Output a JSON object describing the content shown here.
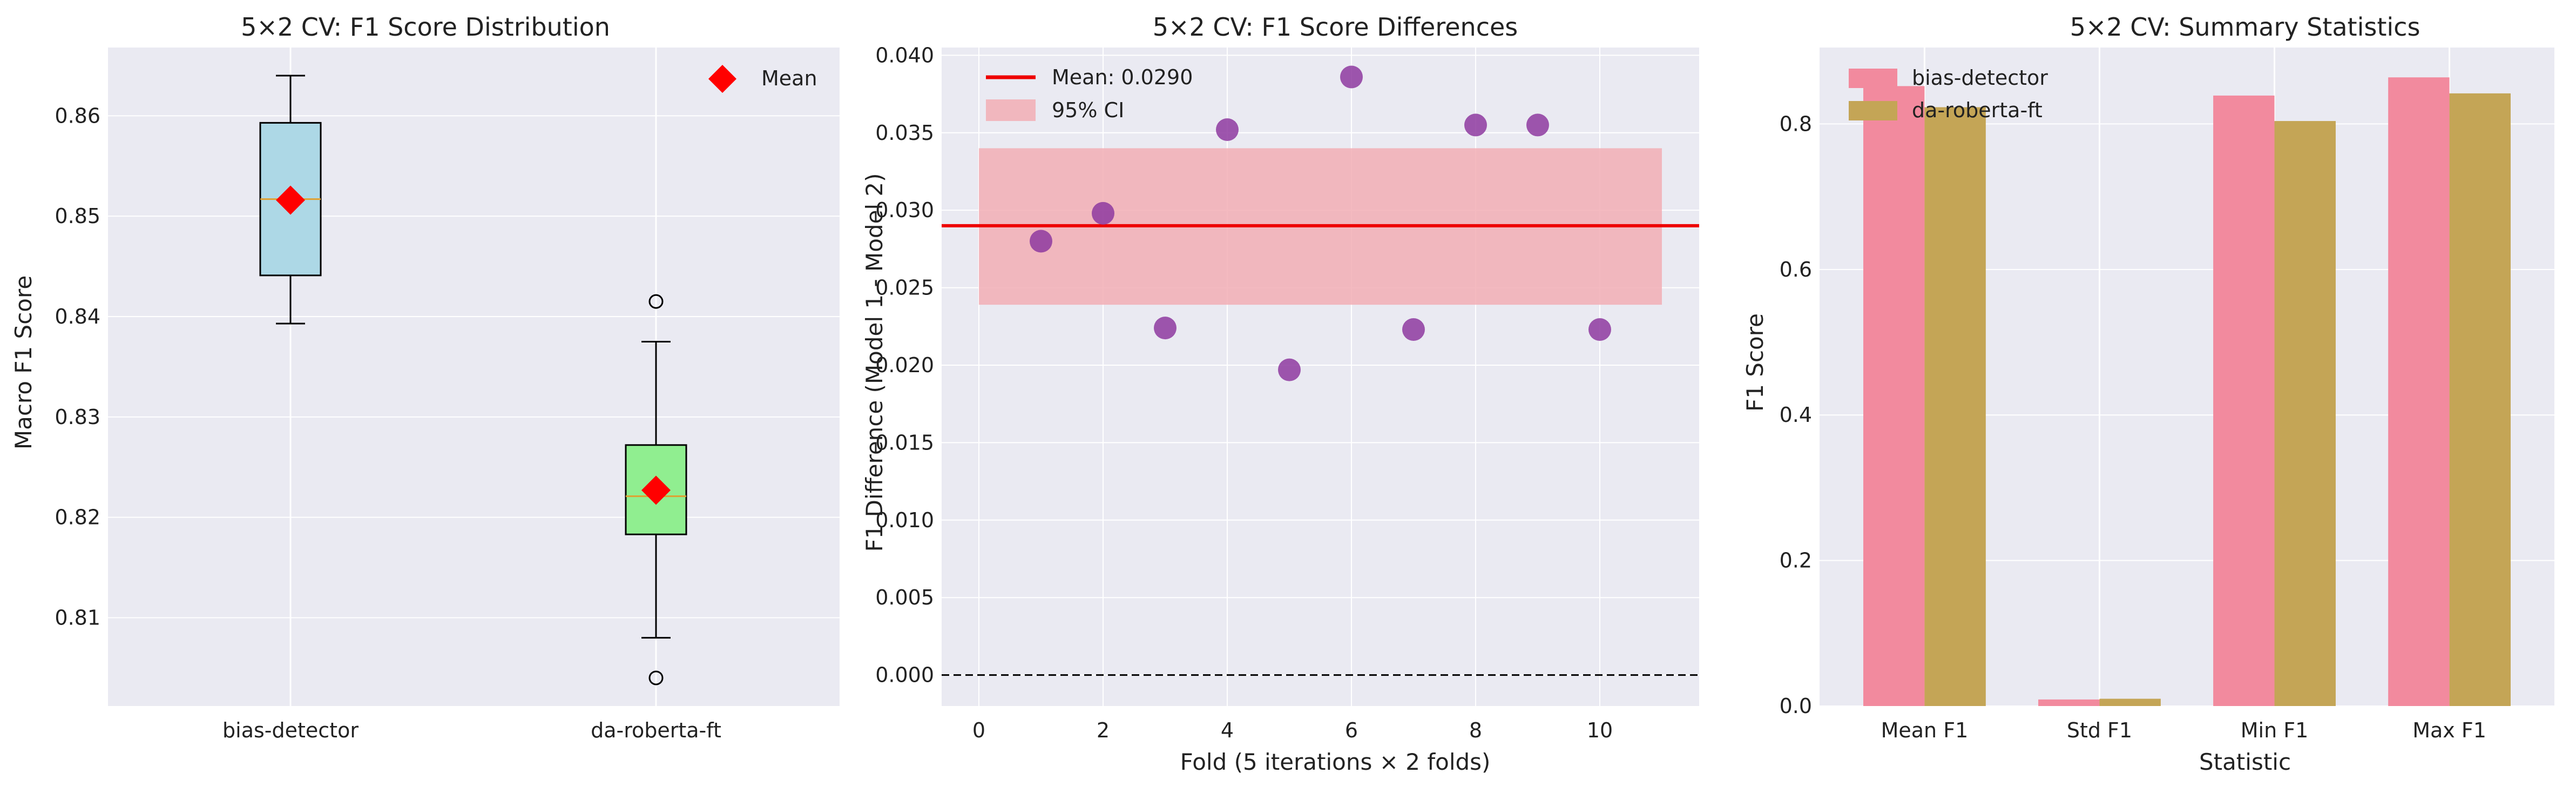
{
  "colors": {
    "axes_bg": "#eaeaf2",
    "grid": "#ffffff",
    "box1_fill": "#add8e6",
    "box2_fill": "#90ee90",
    "median": "#e0a030",
    "mean_marker": "#ff0000",
    "scatter": "#8e3aa0",
    "mean_line": "#ee0000",
    "ci_fill": "#f2aeb5",
    "bar_series1": "#f28a9e",
    "bar_series2": "#c4a556"
  },
  "chart_data": [
    {
      "id": "boxplot",
      "type": "box",
      "title": "5×2 CV: F1 Score Distribution",
      "xlabel": "",
      "ylabel": "Macro F1 Score",
      "categories": [
        "bias-detector",
        "da-roberta-ft"
      ],
      "ylim": [
        0.8012,
        0.8668
      ],
      "yticks": [
        0.81,
        0.82,
        0.83,
        0.84,
        0.85,
        0.86
      ],
      "ytick_labels": [
        "0.81",
        "0.82",
        "0.83",
        "0.84",
        "0.85",
        "0.86"
      ],
      "boxes": [
        {
          "label": "bias-detector",
          "whisker_low": 0.8393,
          "q1": 0.8441,
          "median": 0.8517,
          "q3": 0.8593,
          "whisker_high": 0.864,
          "mean": 0.8516,
          "outliers": []
        },
        {
          "label": "da-roberta-ft",
          "whisker_low": 0.808,
          "q1": 0.8183,
          "median": 0.8221,
          "q3": 0.8272,
          "whisker_high": 0.8375,
          "mean": 0.8227,
          "outliers": [
            0.8415,
            0.804
          ]
        }
      ],
      "legend": [
        {
          "label": "Mean",
          "marker": "diamond"
        }
      ],
      "legend_loc": "upper right"
    },
    {
      "id": "differences",
      "type": "scatter",
      "title": "5×2 CV: F1 Score Differences",
      "xlabel": "Fold (5 iterations × 2 folds)",
      "ylabel": "F1 Difference (Model 1 - Model 2)",
      "xlim": [
        -0.6,
        11.6
      ],
      "ylim": [
        -0.002,
        0.0405
      ],
      "xticks": [
        0,
        2,
        4,
        6,
        8,
        10
      ],
      "xtick_labels": [
        "0",
        "2",
        "4",
        "6",
        "8",
        "10"
      ],
      "yticks": [
        0.0,
        0.005,
        0.01,
        0.015,
        0.02,
        0.025,
        0.03,
        0.035,
        0.04
      ],
      "ytick_labels": [
        "0.000",
        "0.005",
        "0.010",
        "0.015",
        "0.020",
        "0.025",
        "0.030",
        "0.035",
        "0.040"
      ],
      "x": [
        1,
        2,
        3,
        4,
        5,
        6,
        7,
        8,
        9,
        10
      ],
      "y": [
        0.028,
        0.0298,
        0.0224,
        0.0352,
        0.0197,
        0.0386,
        0.0223,
        0.0355,
        0.0355,
        0.0223
      ],
      "mean": 0.029,
      "ci": [
        0.0239,
        0.034
      ],
      "ci_x": [
        0,
        11
      ],
      "zero_line": 0.0,
      "legend": [
        {
          "label": "Mean: 0.0290",
          "kind": "line"
        },
        {
          "label": "95% CI",
          "kind": "patch"
        }
      ],
      "legend_loc": "upper left"
    },
    {
      "id": "summary",
      "type": "bar",
      "title": "5×2 CV: Summary Statistics",
      "xlabel": "Statistic",
      "ylabel": "F1 Score",
      "categories": [
        "Mean F1",
        "Std F1",
        "Min F1",
        "Max F1"
      ],
      "series": [
        {
          "name": "bias-detector",
          "values": [
            0.852,
            0.009,
            0.839,
            0.864
          ]
        },
        {
          "name": "da-roberta-ft",
          "values": [
            0.823,
            0.01,
            0.804,
            0.842
          ]
        }
      ],
      "ylim": [
        0,
        0.905
      ],
      "yticks": [
        0.0,
        0.2,
        0.4,
        0.6,
        0.8
      ],
      "ytick_labels": [
        "0.0",
        "0.2",
        "0.4",
        "0.6",
        "0.8"
      ],
      "legend_loc": "upper left"
    }
  ]
}
